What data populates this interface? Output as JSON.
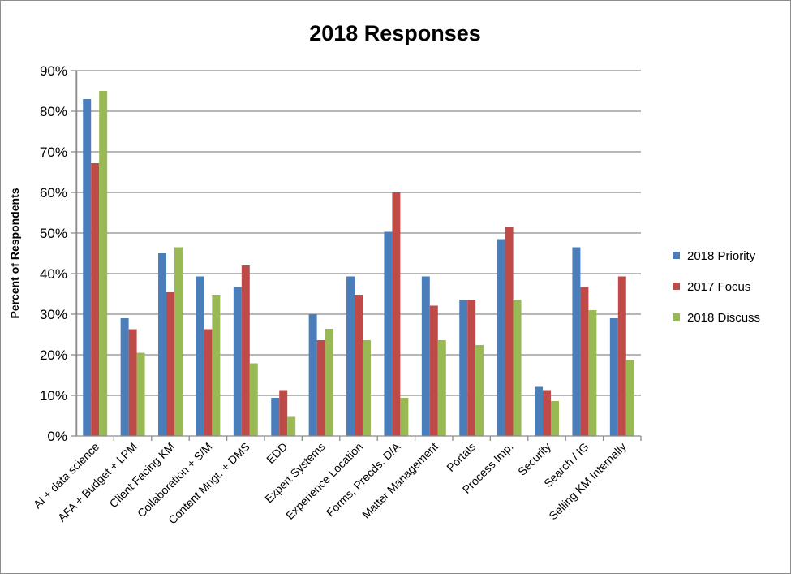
{
  "chart_data": {
    "type": "bar",
    "title": "2018 Responses",
    "ylabel": "Percent of Respondents",
    "xlabel": "",
    "ylim": [
      0,
      90
    ],
    "ytick_step": 10,
    "ytick_suffix": "%",
    "grid": "horizontal",
    "legend_position": "right",
    "categories": [
      "AI + data science",
      "AFA + Budget + LPM",
      "Client Facing KM",
      "Collaboration + S/M",
      "Content Mngt. + DMS",
      "EDD",
      "Expert Systems",
      "Experience Location",
      "Forms, Precds, D/A",
      "Matter Management",
      "Portals",
      "Process Imp.",
      "Security",
      "Search / IG",
      "Selling KM Internally"
    ],
    "series": [
      {
        "name": "2018 Priority",
        "color": "#4a7ebb",
        "values": [
          83,
          29,
          45,
          39.3,
          36.7,
          9.4,
          30,
          39.3,
          50.3,
          39.3,
          33.6,
          48.5,
          12.1,
          46.5,
          29
        ]
      },
      {
        "name": "2017 Focus",
        "color": "#be4b48",
        "values": [
          67.2,
          26.3,
          35.4,
          26.3,
          42,
          11.3,
          23.6,
          34.8,
          60,
          32.1,
          33.6,
          51.5,
          11.3,
          36.7,
          39.3
        ]
      },
      {
        "name": "2018 Discuss",
        "color": "#98b954",
        "values": [
          85,
          20.5,
          46.5,
          34.8,
          17.9,
          4.7,
          26.4,
          23.6,
          9.4,
          23.6,
          22.4,
          33.6,
          8.6,
          31,
          18.7
        ]
      }
    ]
  }
}
